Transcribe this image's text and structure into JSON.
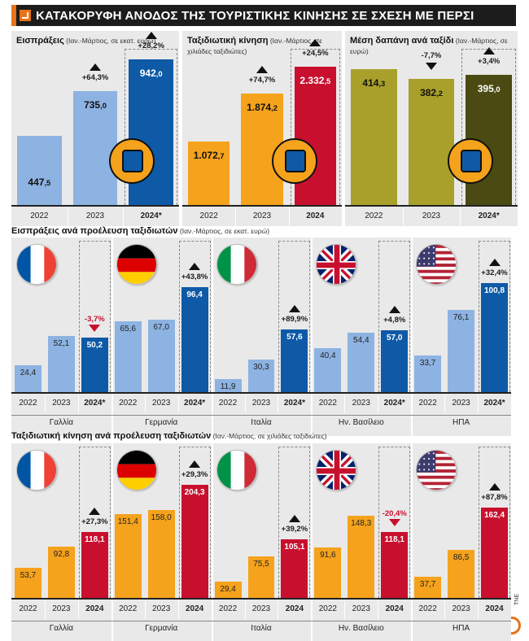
{
  "headline": "ΚΑΤΑΚΟΡΥΦΗ ΑΝΟΔΟΣ ΤΗΣ ΤΟΥΡΙΣΤΙΚΗΣ ΚΙΝΗΣΗΣ ΣΕ ΣΧΕΣΗ ΜΕ ΠΕΡΣΙ",
  "colors": {
    "light_blue": "#8db3e2",
    "dark_blue": "#0e5aa7",
    "orange": "#f5a21c",
    "red": "#c8102e",
    "olive": "#a8a02a",
    "dark_olive": "#4a4a12"
  },
  "credit": "ΤΝΕ",
  "chart_data": [
    {
      "type": "bar",
      "title": "Εισπράξεις",
      "subtitle": "(Ιαν.-Μάρτιος, σε εκατ. ευρώ)",
      "categories": [
        "2022",
        "2023",
        "2024*"
      ],
      "values": [
        447.5,
        735.0,
        942.0
      ],
      "value_labels": [
        "447,5",
        "735,0",
        "942,0"
      ],
      "changes": [
        "",
        "+64,3%",
        "+28,2%"
      ],
      "icon": "money-hand-icon"
    },
    {
      "type": "bar",
      "title": "Ταξιδιωτική κίνηση",
      "subtitle": "(Ιαν.-Μάρτιος, σε χιλιάδες ταξιδιώτες)",
      "categories": [
        "2022",
        "2023",
        "2024"
      ],
      "values": [
        1072.7,
        1874.2,
        2332.5
      ],
      "value_labels": [
        "1.072,7",
        "1.874,2",
        "2.332,5"
      ],
      "changes": [
        "",
        "+74,7%",
        "+24,5%"
      ],
      "icon": "traveler-icon"
    },
    {
      "type": "bar",
      "title": "Μέση δαπάνη ανά ταξίδι",
      "subtitle": "(Ιαν.-Μάρτιος, σε ευρώ)",
      "categories": [
        "2022",
        "2023",
        "2024*"
      ],
      "values": [
        414.3,
        382.2,
        395.0
      ],
      "value_labels": [
        "414,3",
        "382,2",
        "395,0"
      ],
      "changes": [
        "",
        "-7,7%",
        "+3,4%"
      ],
      "icon": "spending-icon"
    },
    {
      "type": "bar",
      "title": "Εισπράξεις ανά προέλευση ταξιδιωτών",
      "subtitle": "(Ιαν.-Μάρτιος, σε εκατ. ευρώ)",
      "categories": [
        "2022",
        "2023",
        "2024*"
      ],
      "groups": [
        {
          "name": "Γαλλία",
          "flag": "france",
          "values": [
            24.4,
            52.1,
            50.2
          ],
          "value_labels": [
            "24,4",
            "52,1",
            "50,2"
          ],
          "change": "-3,7%"
        },
        {
          "name": "Γερμανία",
          "flag": "germany",
          "values": [
            65.6,
            67.0,
            96.4
          ],
          "value_labels": [
            "65,6",
            "67,0",
            "96,4"
          ],
          "change": "+43,8%"
        },
        {
          "name": "Ιταλία",
          "flag": "italy",
          "values": [
            11.9,
            30.3,
            57.6
          ],
          "value_labels": [
            "11,9",
            "30,3",
            "57,6"
          ],
          "change": "+89,9%"
        },
        {
          "name": "Ην. Βασίλειο",
          "flag": "uk",
          "values": [
            40.4,
            54.4,
            57.0
          ],
          "value_labels": [
            "40,4",
            "54,4",
            "57,0"
          ],
          "change": "+4,8%"
        },
        {
          "name": "ΗΠΑ",
          "flag": "usa",
          "values": [
            33.7,
            76.1,
            100.8
          ],
          "value_labels": [
            "33,7",
            "76,1",
            "100,8"
          ],
          "change": "+32,4%"
        }
      ]
    },
    {
      "type": "bar",
      "title": "Ταξιδιωτική κίνηση ανά προέλευση ταξιδιωτών",
      "subtitle": "(Ιαν.-Μάρτιος, σε χιλιάδες ταξιδιώτες)",
      "categories": [
        "2022",
        "2023",
        "2024"
      ],
      "groups": [
        {
          "name": "Γαλλία",
          "flag": "france",
          "values": [
            53.7,
            92.8,
            118.1
          ],
          "value_labels": [
            "53,7",
            "92,8",
            "118,1"
          ],
          "change": "+27,3%"
        },
        {
          "name": "Γερμανία",
          "flag": "germany",
          "values": [
            151.4,
            158.0,
            204.3
          ],
          "value_labels": [
            "151,4",
            "158,0",
            "204,3"
          ],
          "change": "+29,3%"
        },
        {
          "name": "Ιταλία",
          "flag": "italy",
          "values": [
            29.4,
            75.5,
            105.1
          ],
          "value_labels": [
            "29,4",
            "75,5",
            "105,1"
          ],
          "change": "+39,2%"
        },
        {
          "name": "Ην. Βασίλειο",
          "flag": "uk",
          "values": [
            91.6,
            148.3,
            118.1
          ],
          "value_labels": [
            "91,6",
            "148,3",
            "118,1"
          ],
          "change": "-20,4%"
        },
        {
          "name": "ΗΠΑ",
          "flag": "usa",
          "values": [
            37.7,
            86.5,
            162.4
          ],
          "value_labels": [
            "37,7",
            "86,5",
            "162,4"
          ],
          "change": "+87,8%"
        }
      ]
    }
  ]
}
